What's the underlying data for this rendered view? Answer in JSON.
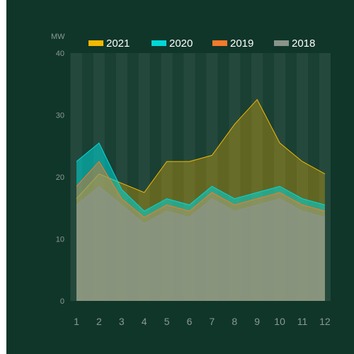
{
  "chart_data": {
    "type": "area",
    "ylabel": "MW",
    "ylim": [
      0,
      40
    ],
    "yticks": [
      0,
      10,
      20,
      30,
      40
    ],
    "categories": [
      "1",
      "2",
      "3",
      "4",
      "5",
      "6",
      "7",
      "8",
      "9",
      "10",
      "11",
      "12"
    ],
    "legend_position": "top",
    "series": [
      {
        "name": "2021",
        "color": "#f5b800",
        "values": [
          16.5,
          20.5,
          19,
          17.5,
          22.5,
          22.5,
          23.5,
          28.5,
          32.5,
          25.5,
          22.5,
          20.5
        ]
      },
      {
        "name": "2020",
        "color": "#00d8d8",
        "values": [
          22.5,
          25.5,
          18,
          14.5,
          16.5,
          15.5,
          18.5,
          16.5,
          17.5,
          18.5,
          16.5,
          15.5
        ]
      },
      {
        "name": "2019",
        "color": "#f57a2a",
        "values": [
          18.5,
          22.5,
          16.5,
          13.5,
          15.5,
          14.5,
          17.5,
          15.5,
          16.5,
          17.5,
          15.5,
          14.5
        ]
      },
      {
        "name": "2018",
        "color": "#8a9488",
        "values": [
          15.5,
          18.5,
          15.5,
          12.5,
          14.5,
          13.5,
          16.5,
          14.5,
          15.5,
          16.5,
          14.5,
          13.5
        ]
      }
    ]
  }
}
